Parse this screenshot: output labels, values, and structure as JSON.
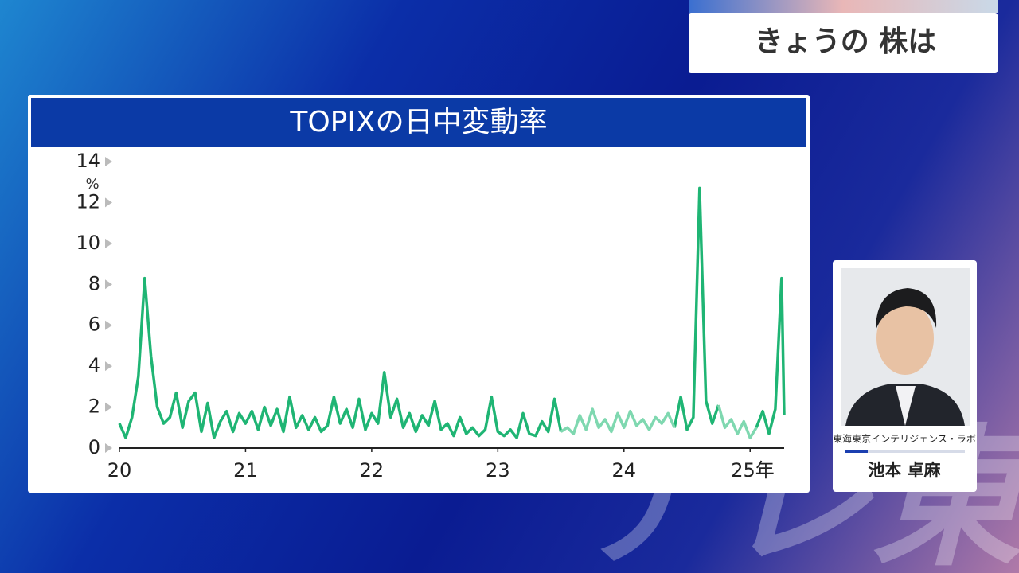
{
  "header": {
    "title": "きょうの 株は"
  },
  "presenter": {
    "affiliation": "東海東京インテリジェンス・ラボ",
    "name": "池本 卓麻"
  },
  "watermark": "テレ東",
  "chart_data": {
    "type": "line",
    "title": "TOPIXの日中変動率",
    "y_unit": "%",
    "x": [
      20,
      20.05,
      20.1,
      20.15,
      20.2,
      20.25,
      20.3,
      20.35,
      20.4,
      20.45,
      20.5,
      20.55,
      20.6,
      20.65,
      20.7,
      20.75,
      20.8,
      20.85,
      20.9,
      20.95,
      21,
      21.05,
      21.1,
      21.15,
      21.2,
      21.25,
      21.3,
      21.35,
      21.4,
      21.45,
      21.5,
      21.55,
      21.6,
      21.65,
      21.7,
      21.75,
      21.8,
      21.85,
      21.9,
      21.95,
      22,
      22.05,
      22.1,
      22.15,
      22.2,
      22.25,
      22.3,
      22.35,
      22.4,
      22.45,
      22.5,
      22.55,
      22.6,
      22.65,
      22.7,
      22.75,
      22.8,
      22.85,
      22.9,
      22.95,
      23,
      23.05,
      23.1,
      23.15,
      23.2,
      23.25,
      23.3,
      23.35,
      23.4,
      23.45,
      23.5,
      23.55,
      23.6,
      23.65,
      23.7,
      23.75,
      23.8,
      23.85,
      23.9,
      23.95,
      24,
      24.05,
      24.1,
      24.15,
      24.2,
      24.25,
      24.3,
      24.35,
      24.4,
      24.45,
      24.5,
      24.55,
      24.6,
      24.65,
      24.7,
      24.75,
      24.8,
      24.85,
      24.9,
      24.95,
      25,
      25.05,
      25.1,
      25.15,
      25.2,
      25.25,
      25.27
    ],
    "series": [
      {
        "color": "#1fb574",
        "values": [
          1.2,
          0.5,
          1.5,
          3.5,
          8.3,
          4.5,
          2.0,
          1.2,
          1.5,
          2.7,
          1.0,
          2.3,
          2.7,
          0.8,
          2.2,
          0.5,
          1.3,
          1.8,
          0.8,
          1.7,
          1.2,
          1.8,
          0.9,
          2.0,
          1.1,
          1.9,
          0.8,
          2.5,
          1.0,
          1.6,
          0.9,
          1.5,
          0.8,
          1.1,
          2.5,
          1.2,
          1.9,
          1.0,
          2.4,
          0.9,
          1.7,
          1.2,
          3.7,
          1.5,
          2.4,
          1.0,
          1.7,
          0.8,
          1.6,
          1.1,
          2.3,
          0.9,
          1.2,
          0.6,
          1.5,
          0.7,
          1.0,
          0.6,
          0.9,
          2.5,
          0.8,
          0.6,
          0.9,
          0.5,
          1.7,
          0.7,
          0.6,
          1.3,
          0.8,
          2.4,
          0.8,
          null,
          null,
          null,
          null,
          null,
          null,
          null,
          null,
          null,
          null,
          null,
          null,
          null,
          null,
          null,
          null,
          null,
          1.0,
          2.5,
          0.9,
          1.5,
          12.7,
          2.3,
          1.2,
          2.1,
          null,
          null,
          null,
          null,
          null,
          1.0,
          1.8,
          0.7,
          1.9,
          8.3,
          1.6
        ]
      },
      {
        "color": "#7fd8b0",
        "values": [
          null,
          null,
          null,
          null,
          null,
          null,
          null,
          null,
          null,
          null,
          null,
          null,
          null,
          null,
          null,
          null,
          null,
          null,
          null,
          null,
          null,
          null,
          null,
          null,
          null,
          null,
          null,
          null,
          null,
          null,
          null,
          null,
          null,
          null,
          null,
          null,
          null,
          null,
          null,
          null,
          null,
          null,
          null,
          null,
          null,
          null,
          null,
          null,
          null,
          null,
          null,
          null,
          null,
          null,
          null,
          null,
          null,
          null,
          null,
          null,
          null,
          null,
          null,
          null,
          null,
          null,
          null,
          null,
          null,
          null,
          0.8,
          1.0,
          0.7,
          1.6,
          0.9,
          1.9,
          1.0,
          1.4,
          0.8,
          1.7,
          1.0,
          1.8,
          1.1,
          1.4,
          0.9,
          1.5,
          1.2,
          1.7,
          1.0,
          null,
          null,
          null,
          null,
          null,
          null,
          2.1,
          1.0,
          1.4,
          0.7,
          1.3,
          0.5,
          1.0,
          null,
          null,
          null,
          null,
          null
        ]
      }
    ],
    "xlim": [
      20,
      25.27
    ],
    "xticks": [
      20,
      21,
      22,
      23,
      24,
      {
        "value": 25,
        "label": "25年"
      }
    ],
    "ylim": [
      0,
      14
    ],
    "yticks": [
      0,
      2,
      4,
      6,
      8,
      10,
      12,
      14
    ]
  }
}
